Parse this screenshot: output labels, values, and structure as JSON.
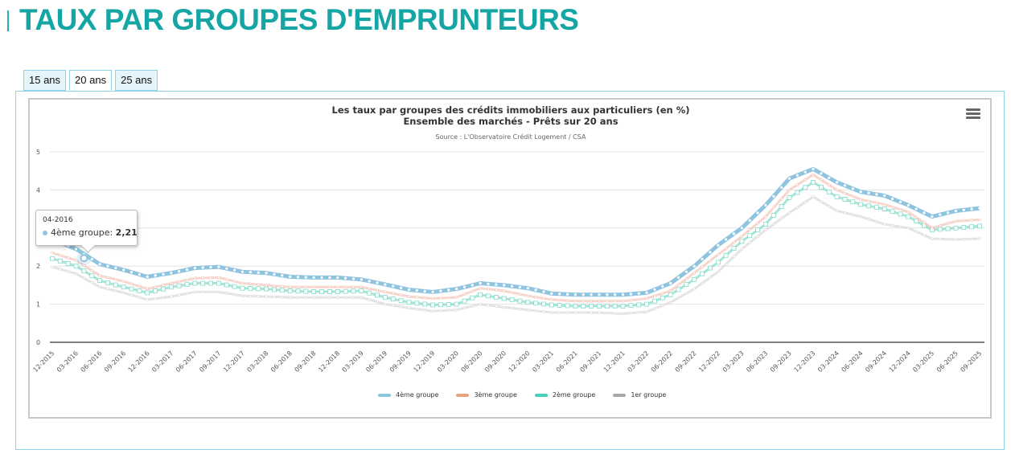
{
  "page": {
    "title": "TAUX PAR GROUPES D'EMPRUNTEURS",
    "tabs": [
      {
        "label": "15 ans",
        "active": false
      },
      {
        "label": "20 ans",
        "active": true
      },
      {
        "label": "25 ans",
        "active": false
      }
    ]
  },
  "chart": {
    "menu_icon": "hamburger-menu-icon",
    "tooltip": {
      "date": "04-2016",
      "series": "4ème groupe",
      "value": "2,21"
    }
  },
  "chart_data": {
    "type": "line",
    "title": "Les taux par groupes des crédits immobiliers aux particuliers (en %)",
    "subtitle": "Ensemble des marchés - Prêts sur 20 ans",
    "source": "Source : L'Observatoire Crédit Logement / CSA",
    "xlabel": "",
    "ylabel": "",
    "ylim": [
      0,
      5
    ],
    "yticks": [
      0,
      1,
      2,
      3,
      4,
      5
    ],
    "ytick_labels": [
      "0",
      "1",
      "2",
      "",
      "4",
      "5"
    ],
    "grid": true,
    "legend_position": "bottom",
    "x_tick_labels": [
      "12-2015",
      "03-2016",
      "06-2016",
      "09-2016",
      "12-2016",
      "03-2017",
      "06-2017",
      "09-2017",
      "12-2017",
      "03-2018",
      "06-2018",
      "09-2018",
      "12-2018",
      "03-2019",
      "06-2019",
      "09-2019",
      "12-2019",
      "03-2020",
      "06-2020",
      "09-2020",
      "12-2020",
      "03-2021",
      "06-2021",
      "09-2021",
      "12-2021",
      "03-2022",
      "06-2022",
      "09-2022",
      "12-2022",
      "03-2023",
      "06-2023",
      "09-2023",
      "12-2023",
      "03-2024",
      "06-2024",
      "09-2024",
      "12-2024",
      "03-2025",
      "06-2025",
      "09-2025"
    ],
    "x_quarterly": [
      "12-2015",
      "03-2016",
      "06-2016",
      "09-2016",
      "12-2016",
      "03-2017",
      "06-2017",
      "09-2017",
      "12-2017",
      "03-2018",
      "06-2018",
      "09-2018",
      "12-2018",
      "03-2019",
      "06-2019",
      "09-2019",
      "12-2019",
      "03-2020",
      "06-2020",
      "09-2020",
      "12-2020",
      "03-2021",
      "06-2021",
      "09-2021",
      "12-2021",
      "03-2022",
      "06-2022",
      "09-2022",
      "12-2022",
      "03-2023",
      "06-2023",
      "09-2023",
      "12-2023",
      "03-2024",
      "06-2024",
      "09-2024",
      "12-2024",
      "03-2025",
      "06-2025",
      "09-2025"
    ],
    "series": [
      {
        "name": "4ème groupe",
        "color": "#8fc4e0",
        "values": [
          2.7,
          2.45,
          2.05,
          1.9,
          1.72,
          1.82,
          1.95,
          1.98,
          1.85,
          1.82,
          1.72,
          1.7,
          1.7,
          1.65,
          1.52,
          1.38,
          1.32,
          1.4,
          1.55,
          1.5,
          1.42,
          1.28,
          1.25,
          1.25,
          1.25,
          1.3,
          1.55,
          2.0,
          2.55,
          3.0,
          3.6,
          4.3,
          4.55,
          4.2,
          3.95,
          3.85,
          3.6,
          3.3,
          3.45,
          3.52
        ]
      },
      {
        "name": "3ème groupe",
        "color": "#f2c4b8",
        "values": [
          2.35,
          2.15,
          1.75,
          1.6,
          1.4,
          1.55,
          1.68,
          1.7,
          1.55,
          1.5,
          1.45,
          1.45,
          1.45,
          1.45,
          1.32,
          1.2,
          1.15,
          1.18,
          1.42,
          1.35,
          1.22,
          1.12,
          1.08,
          1.08,
          1.08,
          1.15,
          1.35,
          1.82,
          2.3,
          2.78,
          3.3,
          4.0,
          4.4,
          4.0,
          3.75,
          3.62,
          3.42,
          3.0,
          3.18,
          3.22
        ]
      },
      {
        "name": "2ème groupe",
        "color": "#7fdcc8",
        "values": [
          2.2,
          2.0,
          1.62,
          1.45,
          1.3,
          1.45,
          1.55,
          1.55,
          1.42,
          1.4,
          1.35,
          1.33,
          1.33,
          1.35,
          1.18,
          1.05,
          0.98,
          1.0,
          1.25,
          1.15,
          1.05,
          0.98,
          0.95,
          0.95,
          0.95,
          1.0,
          1.25,
          1.65,
          2.1,
          2.65,
          3.1,
          3.8,
          4.2,
          3.82,
          3.62,
          3.5,
          3.3,
          2.95,
          3.0,
          3.05
        ]
      },
      {
        "name": "1er groupe",
        "color": "#d9d9d9",
        "values": [
          1.98,
          1.8,
          1.45,
          1.3,
          1.12,
          1.2,
          1.32,
          1.32,
          1.22,
          1.2,
          1.18,
          1.18,
          1.18,
          1.18,
          1.0,
          0.9,
          0.82,
          0.85,
          1.0,
          0.92,
          0.85,
          0.78,
          0.78,
          0.78,
          0.75,
          0.8,
          1.05,
          1.4,
          1.85,
          2.45,
          2.95,
          3.4,
          3.82,
          3.45,
          3.3,
          3.1,
          3.0,
          2.72,
          2.7,
          2.72
        ]
      }
    ]
  }
}
